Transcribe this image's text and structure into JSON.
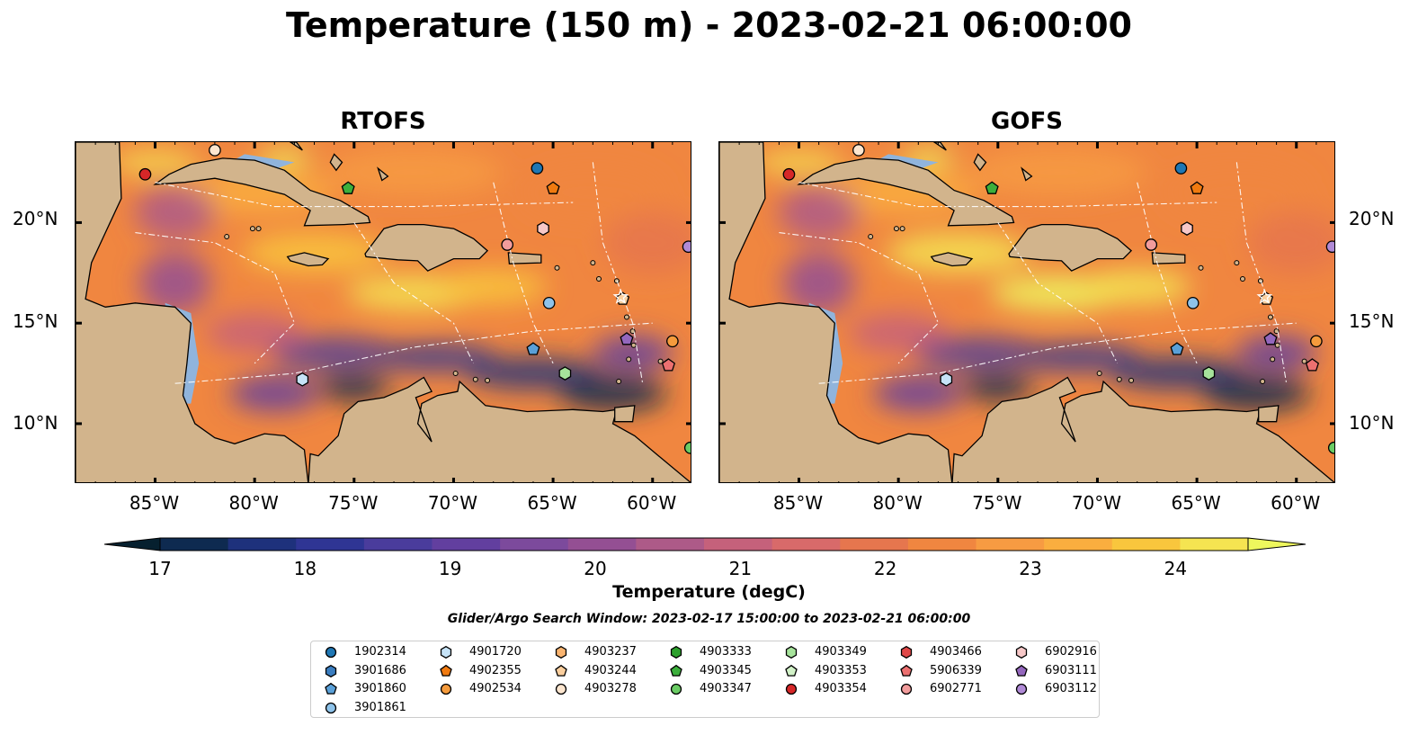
{
  "figure": {
    "title": "Temperature (150 m) - 2023-02-21 06:00:00",
    "search_window": "Glider/Argo Search Window: 2023-02-17 15:00:00 to 2023-02-21 06:00:00"
  },
  "panels": [
    {
      "title": "RTOFS"
    },
    {
      "title": "GOFS"
    }
  ],
  "axes": {
    "lon_ticks": [
      "85°W",
      "80°W",
      "75°W",
      "70°W",
      "65°W",
      "60°W"
    ],
    "lat_ticks": [
      "20°N",
      "15°N",
      "10°N"
    ],
    "lon_range": [
      -89,
      -58
    ],
    "lat_range": [
      7,
      24
    ]
  },
  "colorbar": {
    "label": "Temperature (degC)",
    "ticks": [
      "17",
      "18",
      "19",
      "20",
      "21",
      "22",
      "23",
      "24"
    ],
    "range": [
      17,
      24.5
    ],
    "colors": [
      "#06202f",
      "#0e2a50",
      "#1e317c",
      "#2f3594",
      "#4a3c9c",
      "#623f9f",
      "#7c4a9c",
      "#944f93",
      "#ad5a88",
      "#c5617b",
      "#d86a6a",
      "#e6764e",
      "#f08640",
      "#f79b42",
      "#faae3f",
      "#f9c63d",
      "#f5e451",
      "#eef75d"
    ]
  },
  "land_color": "#d2b48c",
  "shallow_color": "#90b4dc",
  "legend": {
    "items": [
      {
        "id": "1902314",
        "shape": "circle",
        "color": "#1f77b4"
      },
      {
        "id": "3901686",
        "shape": "hexagon",
        "color": "#3a7dc0"
      },
      {
        "id": "3901860",
        "shape": "pentagon",
        "color": "#5aa0d8"
      },
      {
        "id": "3901861",
        "shape": "circle",
        "color": "#8ec3ea"
      },
      {
        "id": "4901720",
        "shape": "hexagon",
        "color": "#c6e3f7"
      },
      {
        "id": "4902355",
        "shape": "pentagon",
        "color": "#f07a10"
      },
      {
        "id": "4902534",
        "shape": "circle",
        "color": "#f59b3c"
      },
      {
        "id": "4903237",
        "shape": "hexagon",
        "color": "#f9b470"
      },
      {
        "id": "4903244",
        "shape": "pentagon",
        "color": "#fbcf9e"
      },
      {
        "id": "4903278",
        "shape": "circle",
        "color": "#fde6cf"
      },
      {
        "id": "4903333",
        "shape": "hexagon",
        "color": "#2ca02c"
      },
      {
        "id": "4903345",
        "shape": "pentagon",
        "color": "#3caf3c"
      },
      {
        "id": "4903347",
        "shape": "circle",
        "color": "#6acc64"
      },
      {
        "id": "4903349",
        "shape": "hexagon",
        "color": "#a6e39b"
      },
      {
        "id": "4903353",
        "shape": "pentagon",
        "color": "#d2f2c8"
      },
      {
        "id": "4903354",
        "shape": "circle",
        "color": "#d62728"
      },
      {
        "id": "4903466",
        "shape": "hexagon",
        "color": "#e04848"
      },
      {
        "id": "5906339",
        "shape": "pentagon",
        "color": "#ec7070"
      },
      {
        "id": "6902771",
        "shape": "circle",
        "color": "#f29c9c"
      },
      {
        "id": "6902916",
        "shape": "hexagon",
        "color": "#f7c8c8"
      },
      {
        "id": "6903111",
        "shape": "pentagon",
        "color": "#9467bd"
      },
      {
        "id": "6903112",
        "shape": "circle",
        "color": "#b08ad6"
      }
    ]
  },
  "markers": [
    {
      "id": "4903278",
      "lon": -82.0,
      "lat": 23.6
    },
    {
      "id": "4903354",
      "lon": -85.5,
      "lat": 22.4
    },
    {
      "id": "1902314",
      "lon": -65.8,
      "lat": 22.7
    },
    {
      "id": "4902355",
      "lon": -65.0,
      "lat": 21.7
    },
    {
      "id": "4903345",
      "lon": -75.3,
      "lat": 21.7
    },
    {
      "id": "6902916",
      "lon": -65.5,
      "lat": 19.7
    },
    {
      "id": "6902771",
      "lon": -67.3,
      "lat": 18.9
    },
    {
      "id": "6903112",
      "lon": -58.2,
      "lat": 18.8
    },
    {
      "id": "3901861",
      "lon": -65.2,
      "lat": 16.0
    },
    {
      "id": "4903244",
      "lon": -61.5,
      "lat": 16.2
    },
    {
      "id": "6903111",
      "lon": -61.3,
      "lat": 14.2
    },
    {
      "id": "4902534",
      "lon": -59.0,
      "lat": 14.1
    },
    {
      "id": "3901860",
      "lon": -66.0,
      "lat": 13.7
    },
    {
      "id": "5906339",
      "lon": -59.2,
      "lat": 12.9
    },
    {
      "id": "4903349",
      "lon": -64.4,
      "lat": 12.5
    },
    {
      "id": "4901720",
      "lon": -77.6,
      "lat": 12.2
    },
    {
      "id": "4903347",
      "lon": -58.1,
      "lat": 8.8
    }
  ]
}
